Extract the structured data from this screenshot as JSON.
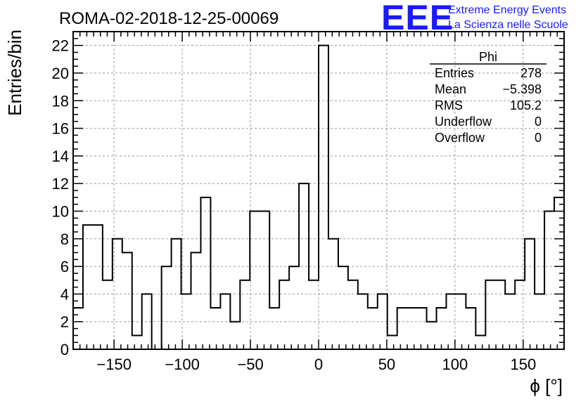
{
  "logo": {
    "letters": "EEE",
    "line1": "Extreme Energy Events",
    "line2": "La Scienza nelle Scuole",
    "color": "#1a1aff"
  },
  "chart_data": {
    "type": "histogram",
    "title": "ROMA-02-2018-12-25-00069",
    "xlabel": "ϕ [°]",
    "ylabel": "Entries/bin",
    "xlim": [
      -180,
      180
    ],
    "ylim": [
      0,
      23
    ],
    "grid": true,
    "x_ticks": [
      -150,
      -100,
      -50,
      0,
      50,
      100,
      150
    ],
    "x_tick_labels": [
      "−150",
      "−100",
      "−50",
      "0",
      "50",
      "100",
      "150"
    ],
    "y_ticks": [
      0,
      2,
      4,
      6,
      8,
      10,
      12,
      14,
      16,
      18,
      20,
      22
    ],
    "bin_width": 7.2,
    "bin_start": -180,
    "values": [
      3,
      9,
      9,
      5,
      8,
      7,
      1,
      4,
      0,
      6,
      8,
      4,
      7,
      11,
      3,
      4,
      2,
      5,
      10,
      10,
      3,
      5,
      6,
      12,
      5,
      22,
      8,
      6,
      5,
      4,
      3,
      4,
      1,
      3,
      3,
      3,
      2,
      3,
      4,
      4,
      3,
      1,
      5,
      5,
      4,
      5,
      8,
      4,
      10,
      11
    ],
    "stats_box": {
      "name": "Phi",
      "rows": [
        {
          "label": "Entries",
          "value": "278"
        },
        {
          "label": "Mean",
          "value": "−5.398"
        },
        {
          "label": "RMS",
          "value": "105.2"
        },
        {
          "label": "Underflow",
          "value": "0"
        },
        {
          "label": "Overflow",
          "value": "0"
        }
      ]
    }
  }
}
